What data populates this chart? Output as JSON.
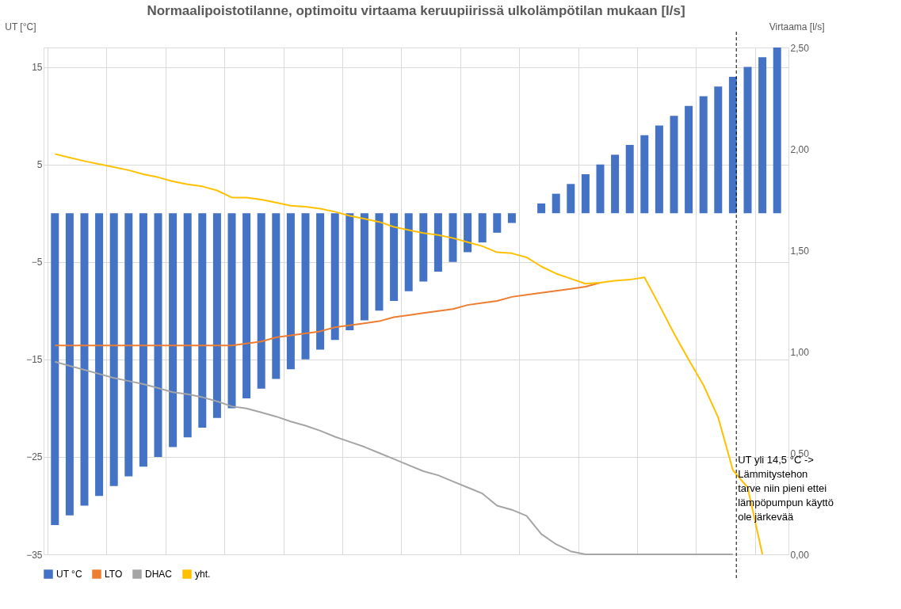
{
  "chart_data": {
    "type": "bar",
    "title": "Normaalipoistotilanne, optimoitu virtaama keruupiirissä ulkolämpötilan mukaan [l/s]",
    "ylabel": "UT [°C]",
    "y2label": "Virtaama [l/s]",
    "categories": [
      null,
      null,
      null,
      null,
      null,
      null,
      null,
      null,
      null,
      null,
      null,
      null,
      null,
      null,
      null,
      null,
      null,
      null,
      null,
      null,
      null,
      null,
      null,
      null,
      null,
      null,
      null,
      null,
      null,
      null,
      null,
      null,
      null,
      null,
      null,
      null,
      null,
      null,
      null,
      null,
      null,
      null,
      null,
      null,
      null,
      null,
      null,
      null,
      null,
      null
    ],
    "series": [
      {
        "name": "UT °C",
        "color": "#4472c4",
        "values": [
          -32,
          -31,
          -30,
          -29,
          -28,
          -27,
          -26,
          -25,
          -24,
          -23,
          -22,
          -21,
          -20,
          -19,
          -18,
          -17,
          -16,
          -15,
          -14,
          -13,
          -12,
          -11,
          -10,
          -9,
          -8,
          -7,
          -6,
          -5,
          -4,
          -3,
          -2,
          -1,
          0,
          1,
          2,
          3,
          4,
          5,
          6,
          7,
          8,
          9,
          10,
          11,
          12,
          13,
          14,
          15,
          16,
          17
        ]
      },
      {
        "name": "LTO",
        "type": "line",
        "axis": "y2",
        "color": "#ed7d31",
        "values": [
          1.03,
          1.03,
          1.03,
          1.03,
          1.03,
          1.03,
          1.03,
          1.03,
          1.03,
          1.03,
          1.03,
          1.03,
          1.03,
          1.04,
          1.05,
          1.07,
          1.08,
          1.09,
          1.1,
          1.12,
          1.13,
          1.14,
          1.15,
          1.17,
          1.18,
          1.19,
          1.2,
          1.21,
          1.23,
          1.24,
          1.25,
          1.27,
          1.28,
          1.29,
          1.3,
          1.31,
          1.32,
          1.34,
          null,
          null,
          null,
          null,
          null,
          null,
          null,
          null,
          null,
          null,
          null,
          null
        ]
      },
      {
        "name": "DHAC",
        "type": "line",
        "axis": "y2",
        "color": "#a5a5a5",
        "values": [
          0.95,
          0.93,
          0.91,
          0.89,
          0.87,
          0.855,
          0.84,
          0.82,
          0.8,
          0.79,
          0.775,
          0.755,
          0.73,
          0.72,
          0.7,
          0.68,
          0.655,
          0.635,
          0.61,
          0.58,
          0.555,
          0.53,
          0.5,
          0.47,
          0.44,
          0.41,
          0.39,
          0.36,
          0.33,
          0.3,
          0.24,
          0.22,
          0.19,
          0.1,
          0.05,
          0.015,
          0,
          0,
          0,
          0,
          0,
          0,
          0,
          0,
          0,
          0,
          0,
          null,
          null,
          null
        ]
      },
      {
        "name": "yht.",
        "type": "line",
        "axis": "y2",
        "color": "#ffc000",
        "values": [
          1.975,
          1.957,
          1.94,
          1.925,
          1.91,
          1.895,
          1.875,
          1.86,
          1.84,
          1.825,
          1.815,
          1.795,
          1.76,
          1.76,
          1.75,
          1.735,
          1.72,
          1.715,
          1.705,
          1.69,
          1.67,
          1.655,
          1.64,
          1.615,
          1.6,
          1.585,
          1.575,
          1.56,
          1.54,
          1.52,
          1.49,
          1.485,
          1.465,
          1.42,
          1.385,
          1.36,
          1.335,
          1.34,
          1.35,
          1.355,
          1.366,
          1.23,
          1.09,
          0.96,
          0.835,
          0.675,
          0.415,
          0.33,
          0,
          null
        ]
      }
    ],
    "ylim": [
      -35,
      17
    ],
    "yticks": [
      -35,
      -25,
      -15,
      -5,
      5,
      15
    ],
    "y2lim": [
      0,
      2.5
    ],
    "y2ticks": [
      {
        "value": 0,
        "label": "0,00"
      },
      {
        "value": 0.5,
        "label": "0,50"
      },
      {
        "value": 1,
        "label": "1,00"
      },
      {
        "value": 1.5,
        "label": "1,50"
      },
      {
        "value": 2,
        "label": "2,00"
      },
      {
        "value": 2.5,
        "label": "2,50"
      }
    ],
    "annotations": [
      "UT yli 14,5 °C ->\nLämmitystehon\ntarve niin pieni ettei\nlämpöpumpun käyttö\nole järkevää"
    ],
    "grid": true,
    "legend": "bottom"
  }
}
